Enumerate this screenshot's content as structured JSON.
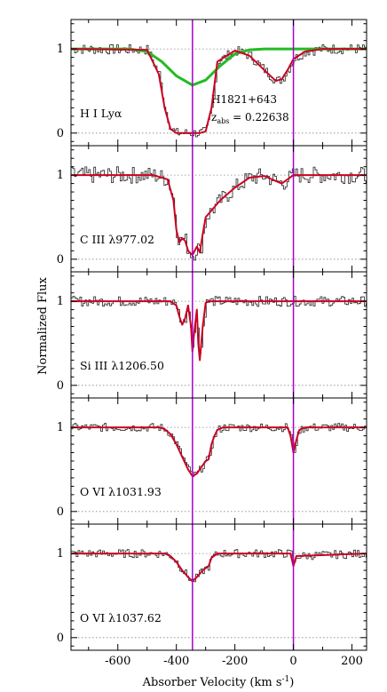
{
  "figure": {
    "title": "",
    "object_label": "H1821+643",
    "redshift_prefix": "z",
    "redshift_sub": "abs",
    "redshift_value": " = 0.22638",
    "xlabel_main": "Absorber Velocity (km s",
    "xlabel_exp": "-1",
    "xlabel_end": ")",
    "ylabel": "Normalized Flux"
  },
  "colors": {
    "data": "#222222",
    "fit": "#cc0022",
    "component": "#22bb22",
    "vline": "#aa00cc",
    "dotted": "#888888"
  },
  "chart_data": [
    {
      "type": "line",
      "panel_label": "H I Lyα",
      "xlim": [
        -760,
        250
      ],
      "ylim": [
        -0.15,
        1.35
      ],
      "x_ticks": [
        -600,
        -400,
        -200,
        0,
        200
      ],
      "y_ticks": [
        0,
        1
      ],
      "grid": false,
      "legend": "none",
      "vertical_lines": [
        -345,
        0
      ],
      "series": [
        {
          "values_x": [
            -760,
            -500,
            -460,
            -440,
            -420,
            -400,
            -380,
            -360,
            -340,
            -320,
            -300,
            -280,
            -260,
            -200,
            -150,
            -100,
            -60,
            -40,
            -20,
            0,
            40,
            100,
            250
          ],
          "values_y": [
            1.0,
            0.99,
            0.7,
            0.3,
            0.05,
            0.0,
            0.0,
            0.0,
            0.0,
            0.0,
            0.02,
            0.3,
            0.85,
            0.98,
            0.92,
            0.75,
            0.62,
            0.64,
            0.75,
            0.88,
            0.97,
            1.0,
            1.0
          ]
        },
        {
          "values_x": [
            -760,
            -560,
            -500,
            -450,
            -400,
            -345,
            -300,
            -250,
            -200,
            -150,
            -100,
            250
          ],
          "values_y": [
            1.0,
            1.0,
            0.97,
            0.85,
            0.68,
            0.57,
            0.63,
            0.8,
            0.94,
            0.99,
            1.0,
            1.0
          ]
        }
      ]
    },
    {
      "type": "line",
      "panel_label": "C III λ977.02",
      "xlim": [
        -760,
        250
      ],
      "ylim": [
        -0.15,
        1.35
      ],
      "x_ticks": [
        -600,
        -400,
        -200,
        0,
        200
      ],
      "y_ticks": [
        0,
        1
      ],
      "grid": false,
      "legend": "none",
      "vertical_lines": [
        -345,
        0
      ],
      "series": [
        {
          "values_x": [
            -760,
            -480,
            -430,
            -410,
            -400,
            -390,
            -380,
            -370,
            -360,
            -345,
            -330,
            -320,
            -310,
            -300,
            -280,
            -250,
            -200,
            -150,
            -100,
            -60,
            -40,
            -20,
            0,
            250
          ],
          "values_y": [
            1.0,
            1.0,
            0.95,
            0.7,
            0.35,
            0.2,
            0.25,
            0.22,
            0.1,
            0.05,
            0.15,
            0.08,
            0.3,
            0.5,
            0.58,
            0.7,
            0.85,
            0.97,
            0.99,
            0.93,
            0.9,
            0.95,
            1.0,
            1.0
          ]
        }
      ]
    },
    {
      "type": "line",
      "panel_label": "Si III λ1206.50",
      "xlim": [
        -760,
        250
      ],
      "ylim": [
        -0.15,
        1.35
      ],
      "x_ticks": [
        -600,
        -400,
        -200,
        0,
        200
      ],
      "y_ticks": [
        0,
        1
      ],
      "grid": false,
      "legend": "none",
      "vertical_lines": [
        -345,
        0
      ],
      "series": [
        {
          "values_x": [
            -760,
            -420,
            -400,
            -390,
            -380,
            -370,
            -360,
            -350,
            -345,
            -340,
            -330,
            -325,
            -320,
            -310,
            -300,
            -290,
            250
          ],
          "values_y": [
            1.0,
            1.0,
            0.95,
            0.82,
            0.72,
            0.8,
            0.95,
            0.7,
            0.4,
            0.6,
            0.9,
            0.5,
            0.3,
            0.7,
            0.98,
            1.0,
            1.0
          ]
        }
      ]
    },
    {
      "type": "line",
      "panel_label": "O VI λ1031.93",
      "xlim": [
        -760,
        250
      ],
      "ylim": [
        -0.15,
        1.35
      ],
      "x_ticks": [
        -600,
        -400,
        -200,
        0,
        200
      ],
      "y_ticks": [
        0,
        1
      ],
      "grid": false,
      "legend": "none",
      "vertical_lines": [
        -345,
        0
      ],
      "series": [
        {
          "values_x": [
            -760,
            -460,
            -440,
            -420,
            -400,
            -380,
            -360,
            -345,
            -330,
            -310,
            -300,
            -290,
            -280,
            -270,
            -260,
            -240,
            -20,
            -10,
            0,
            10,
            20,
            40,
            250
          ],
          "values_y": [
            1.0,
            1.0,
            0.98,
            0.92,
            0.8,
            0.65,
            0.5,
            0.42,
            0.45,
            0.55,
            0.6,
            0.62,
            0.8,
            0.9,
            0.97,
            1.0,
            1.0,
            0.9,
            0.7,
            0.85,
            0.97,
            1.0,
            1.0
          ]
        }
      ]
    },
    {
      "type": "line",
      "panel_label": "O VI λ1037.62",
      "xlim": [
        -760,
        250
      ],
      "ylim": [
        -0.15,
        1.35
      ],
      "x_ticks": [
        -600,
        -400,
        -200,
        0,
        200
      ],
      "y_ticks": [
        0,
        1
      ],
      "grid": false,
      "legend": "none",
      "vertical_lines": [
        -345,
        0
      ],
      "series": [
        {
          "values_x": [
            -760,
            -440,
            -420,
            -400,
            -380,
            -360,
            -345,
            -330,
            -310,
            -290,
            -280,
            -260,
            -10,
            0,
            10,
            250
          ],
          "values_y": [
            1.0,
            1.0,
            0.97,
            0.9,
            0.8,
            0.72,
            0.67,
            0.72,
            0.8,
            0.85,
            0.95,
            1.0,
            1.0,
            0.85,
            0.97,
            1.0
          ]
        }
      ]
    }
  ]
}
